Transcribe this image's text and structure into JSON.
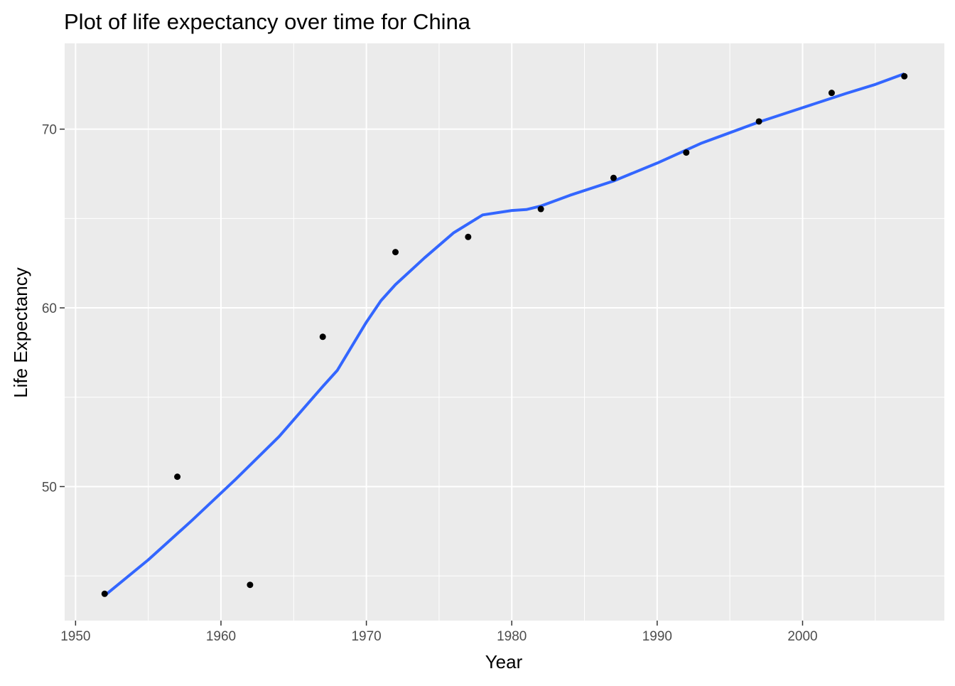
{
  "chart_data": {
    "type": "scatter",
    "title": "Plot of life expectancy over time for China",
    "xlabel": "Year",
    "ylabel": "Life Expectancy",
    "xlim": [
      1949.25,
      2009.75
    ],
    "ylim": [
      42.5,
      74.8
    ],
    "x_ticks": [
      1950,
      1960,
      1970,
      1980,
      1990,
      2000
    ],
    "y_ticks": [
      50,
      60,
      70
    ],
    "x_minor_ticks": [
      1955,
      1965,
      1975,
      1985,
      1995,
      2005
    ],
    "y_minor_ticks": [
      45,
      55,
      65
    ],
    "grid": true,
    "panel_background": "#ebebeb",
    "grid_color": "#ffffff",
    "point_color": "#000000",
    "series": [
      {
        "x": [
          1952,
          1957,
          1962,
          1967,
          1972,
          1977,
          1982,
          1987,
          1992,
          1997,
          2002,
          2007
        ],
        "y": [
          44.0,
          50.55,
          44.5,
          58.38,
          63.12,
          63.97,
          65.53,
          67.27,
          68.69,
          70.43,
          72.03,
          72.96
        ]
      }
    ],
    "smooth_line": {
      "color": "#3366ff",
      "x": [
        1952,
        1955,
        1958,
        1961,
        1964,
        1967,
        1968,
        1970,
        1971,
        1972,
        1974,
        1976,
        1978,
        1980,
        1981,
        1982,
        1984,
        1987,
        1990,
        1993,
        1997,
        2000,
        2003,
        2005,
        2007
      ],
      "y": [
        43.9,
        45.9,
        48.1,
        50.4,
        52.8,
        55.6,
        56.5,
        59.2,
        60.4,
        61.3,
        62.8,
        64.2,
        65.2,
        65.45,
        65.5,
        65.7,
        66.3,
        67.1,
        68.1,
        69.2,
        70.4,
        71.2,
        72.0,
        72.5,
        73.1
      ]
    }
  }
}
